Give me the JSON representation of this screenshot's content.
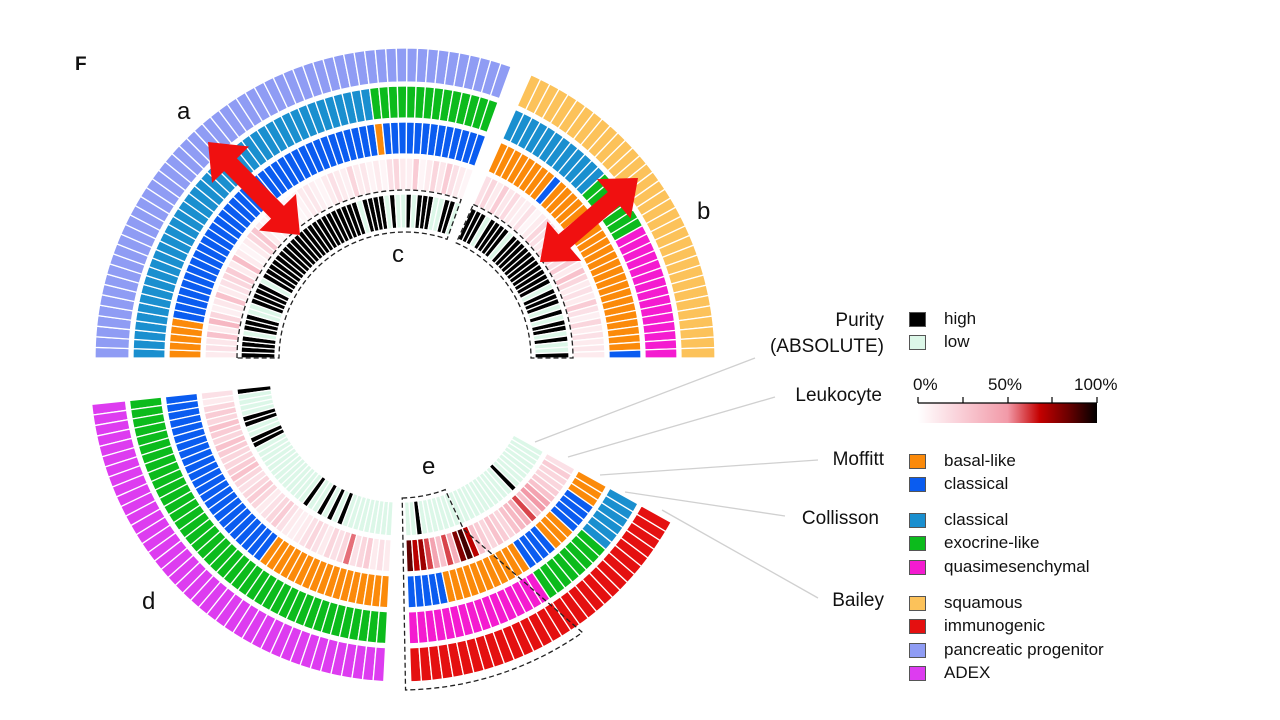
{
  "panel_label": "F",
  "segment_labels": {
    "a": "a",
    "b": "b",
    "c": "c",
    "d": "d",
    "e": "e"
  },
  "legend": {
    "purity": {
      "title_line1": "Purity",
      "title_line2": "(ABSOLUTE)",
      "high": "high",
      "low": "low"
    },
    "leukocyte": {
      "title": "Leukocyte",
      "ticks": [
        "0%",
        "50%",
        "100%"
      ]
    },
    "moffitt": {
      "title": "Moffitt",
      "items": [
        "basal-like",
        "classical"
      ]
    },
    "collisson": {
      "title": "Collisson",
      "items": [
        "classical",
        "exocrine-like",
        "quasimesenchymal"
      ]
    },
    "bailey": {
      "title": "Bailey",
      "items": [
        "squamous",
        "immunogenic",
        "pancreatic progenitor",
        "ADEX"
      ]
    }
  },
  "colors": {
    "purity_high": "#000000",
    "purity_low": "#dcf7e8",
    "moffitt": {
      "basal-like": "#fb8a0a",
      "classical": "#0a5cf0"
    },
    "collisson": {
      "classical": "#1a8fcf",
      "exocrine-like": "#0cbb1c",
      "quasimesenchymal": "#f41bd0"
    },
    "bailey": {
      "squamous": "#fcc25a",
      "immunogenic": "#e41010",
      "pancreatic progenitor": "#8f9cf4",
      "ADEX": "#dd3cf0"
    },
    "leukocyte_scale": [
      "#ffffff",
      "#f9ccd5",
      "#f29aa8",
      "#c40000",
      "#6a0000",
      "#000000"
    ],
    "arrow": "#f01010"
  },
  "chart_data": {
    "type": "heatmap",
    "layout": "circular",
    "rings_inner_to_outer": [
      "Purity (ABSOLUTE)",
      "Leukocyte",
      "Moffitt",
      "Collisson",
      "Bailey"
    ],
    "leukocyte_range": [
      0,
      100
    ],
    "segments": [
      {
        "id": "a",
        "bailey": [
          [
            "pancreatic progenitor",
            56
          ]
        ],
        "collisson": [
          [
            "classical",
            42
          ],
          [
            "exocrine-like",
            14
          ]
        ],
        "moffitt": [
          [
            "basal-like",
            5
          ],
          [
            "classical",
            37
          ],
          [
            "basal-like",
            1
          ],
          [
            "classical",
            13
          ]
        ],
        "leukocyte": [
          0.1,
          0.15,
          0.12,
          0.3,
          0.1,
          0.35,
          0.2,
          0.08,
          0.12,
          0.3,
          0.1,
          0.15,
          0.2,
          0.25,
          0.1,
          0.32,
          0.1,
          0.05,
          0.1,
          0.2,
          0.28,
          0.1,
          0.05,
          0.08,
          0.1,
          0.15,
          0.05,
          0.04,
          0.06,
          0.1,
          0.12,
          0.08,
          0.05,
          0.1,
          0.15,
          0.1,
          0.08,
          0.2,
          0.1,
          0.12,
          0.06,
          0.1,
          0.05,
          0.15,
          0.2,
          0.1,
          0.08,
          0.25,
          0.05,
          0.1,
          0.2,
          0.12,
          0.25,
          0.15,
          0.1,
          0.05
        ],
        "purity": "HHHHLHHHLLHHHHLHHHHHHHHHHHHHHHHHHHHHHLHHHHLHLLHLHHHLLHHL"
      },
      {
        "id": "b",
        "bailey": [
          [
            "squamous",
            34
          ]
        ],
        "collisson": [
          [
            "classical",
            12
          ],
          [
            "exocrine-like",
            7
          ],
          [
            "quasimesenchymal",
            15
          ]
        ],
        "moffitt": [
          [
            "basal-like",
            8
          ],
          [
            "classical",
            1
          ],
          [
            "basal-like",
            24
          ],
          [
            "classical",
            1
          ]
        ],
        "leukocyte": [
          0.15,
          0.2,
          0.1,
          0.25,
          0.12,
          0.18,
          0.1,
          0.08,
          0.15,
          0.05,
          0.1,
          0.2,
          0.15,
          0.1,
          0.2,
          0.35,
          0.2,
          0.15,
          0.25,
          0.1,
          0.3,
          0.2,
          0.1,
          0.15,
          0.1,
          0.25,
          0.15,
          0.08,
          0.2,
          0.1,
          0.15,
          0.1,
          0.12,
          0.1
        ],
        "purity": "HHHLHHHHLHHHHHHHHHHHLHHHLHLHHLHLLH"
      },
      {
        "id": "d",
        "bailey": [
          [
            "ADEX",
            41
          ]
        ],
        "collisson": [
          [
            "exocrine-like",
            41
          ]
        ],
        "moffitt": [
          [
            "classical",
            24
          ],
          [
            "basal-like",
            17
          ]
        ],
        "leukocyte": [
          0.15,
          0.1,
          0.2,
          0.25,
          0.2,
          0.3,
          0.25,
          0.2,
          0.3,
          0.25,
          0.2,
          0.2,
          0.25,
          0.3,
          0.2,
          0.15,
          0.2,
          0.25,
          0.2,
          0.1,
          0.15,
          0.2,
          0.25,
          0.15,
          0.1,
          0.08,
          0.1,
          0.15,
          0.2,
          0.15,
          0.1,
          0.2,
          0.15,
          0.2,
          0.55,
          0.15,
          0.2,
          0.25,
          0.1,
          0.15,
          0.1
        ],
        "purity": "HLLLLHHLLHHLLLLLLLLLLLLLHLLHLHLHLLLLLLLLL"
      },
      {
        "id": "e",
        "bailey": [
          [
            "immunogenic",
            30
          ]
        ],
        "collisson": [
          [
            "quasimesenchymal",
            16
          ],
          [
            "exocrine-like",
            8
          ],
          [
            "classical",
            6
          ]
        ],
        "moffitt": [
          [
            "classical",
            5
          ],
          [
            "basal-like",
            11
          ],
          [
            "classical",
            4
          ],
          [
            "basal-like",
            3
          ],
          [
            "classical",
            4
          ],
          [
            "basal-like",
            3
          ]
        ],
        "leukocyte": [
          0.85,
          0.7,
          0.75,
          0.6,
          0.45,
          0.3,
          0.6,
          0.4,
          0.8,
          0.9,
          0.7,
          0.3,
          0.25,
          0.2,
          0.3,
          0.25,
          0.2,
          0.3,
          0.35,
          0.4,
          0.6,
          0.3,
          0.5,
          0.45,
          0.3,
          0.25,
          0.2,
          0.2,
          0.25,
          0.15
        ],
        "purity": "LLHLLLLLLLLLLLLLLLLLLHLLLLLLLL"
      }
    ]
  }
}
